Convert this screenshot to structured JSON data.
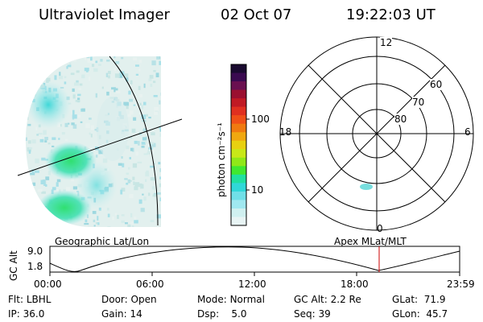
{
  "header": {
    "title": "Ultraviolet Imager",
    "date": "02 Oct 07",
    "time": "19:22:03 UT"
  },
  "colorbar": {
    "unit_label": "photon cm⁻²s⁻¹",
    "tick_labels": [
      "100",
      "10"
    ],
    "colors_top_to_bottom": [
      "#1a0a30",
      "#3a0a50",
      "#6a1050",
      "#9a1030",
      "#c01a24",
      "#e03020",
      "#f05018",
      "#f07a10",
      "#f0a810",
      "#e8d010",
      "#c8e818",
      "#90e818",
      "#40e830",
      "#20e0a0",
      "#30d8d8",
      "#70e0e8",
      "#a0e8f0",
      "#d0f0f0",
      "#e8f4f4"
    ]
  },
  "polar": {
    "clock_labels": {
      "top": "12",
      "left": "18",
      "right": "6",
      "bottom": "0"
    },
    "lat_labels": [
      "60",
      "70",
      "80"
    ]
  },
  "timeline": {
    "axis_title": "GC Alt",
    "y_ticks": [
      "9.0",
      "1.8"
    ],
    "left_label": "Geographic Lat/Lon",
    "right_label": "Apex  MLat/MLT",
    "x_ticks": [
      "00:00",
      "06:00",
      "12:00",
      "18:00",
      "23:59"
    ],
    "current_marker_color": "#cc0000"
  },
  "info": {
    "rows": [
      [
        {
          "label": "Flt:",
          "value": "LBHL"
        },
        {
          "label": "Door:",
          "value": "Open"
        },
        {
          "label": "Mode:",
          "value": "Normal"
        },
        {
          "label": "GC Alt:",
          "value": "2.2 Re"
        },
        {
          "label": "GLat:",
          "value": "71.9"
        }
      ],
      [
        {
          "label": "IP:",
          "value": "36.0"
        },
        {
          "label": "Gain:",
          "value": "14"
        },
        {
          "label": "Dsp:",
          "value": "5.0"
        },
        {
          "label": "Seq:",
          "value": "39"
        },
        {
          "label": "GLon:",
          "value": "45.7"
        }
      ]
    ]
  }
}
